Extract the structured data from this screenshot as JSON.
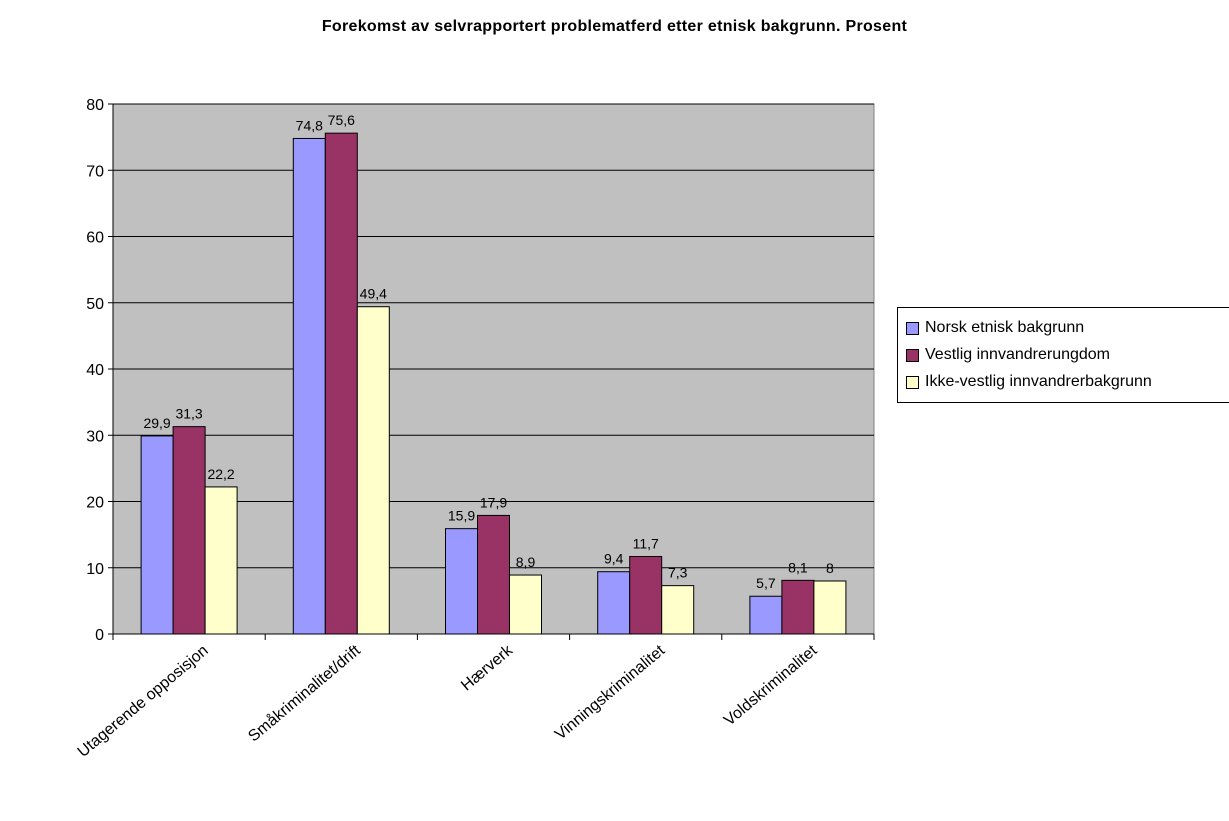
{
  "chart_data": {
    "type": "bar",
    "title": "Forekomst av selvrapportert problematferd etter etnisk bakgrunn. Prosent",
    "xlabel": "",
    "ylabel": "",
    "ylim": [
      0,
      80
    ],
    "yticks": [
      0,
      10,
      20,
      30,
      40,
      50,
      60,
      70,
      80
    ],
    "grid": true,
    "legend_position": "right",
    "plot_background": "#c0c0c0",
    "categories": [
      "Utagerende opposisjon",
      "Småkriminalitet/drift",
      "Hærverk",
      "Vinningskriminalitet",
      "Voldskriminalitet"
    ],
    "series": [
      {
        "name": "Norsk etnisk bakgrunn",
        "color": "#9999ff",
        "values": [
          29.9,
          74.8,
          15.9,
          9.4,
          5.7
        ],
        "labels": [
          "29,9",
          "74,8",
          "15,9",
          "9,4",
          "5,7"
        ]
      },
      {
        "name": "Vestlig innvandrerungdom",
        "color": "#993366",
        "values": [
          31.3,
          75.6,
          17.9,
          11.7,
          8.1
        ],
        "labels": [
          "31,3",
          "75,6",
          "17,9",
          "11,7",
          "8,1"
        ]
      },
      {
        "name": "Ikke-vestlig innvandrerbakgrunn",
        "color": "#ffffcc",
        "values": [
          22.2,
          49.4,
          8.9,
          7.3,
          8
        ],
        "labels": [
          "22,2",
          "49,4",
          "8,9",
          "7,3",
          "8"
        ]
      }
    ]
  }
}
